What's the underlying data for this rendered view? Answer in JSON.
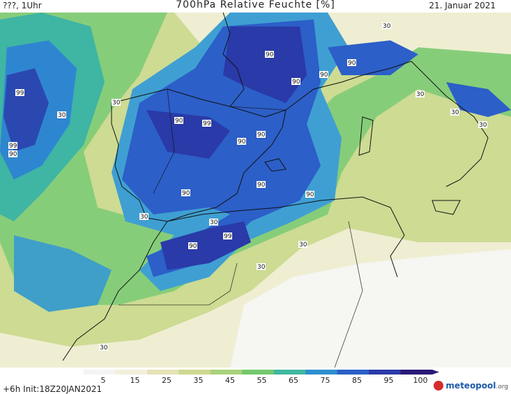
{
  "header": {
    "left": "???, 1Uhr",
    "title": "700hPa Relative Feuchte [%]",
    "date": "21. Januar 2021"
  },
  "footer": {
    "init": "+6h  Init:18Z20JAN2021",
    "logo": "meteopool",
    "logo_suffix": ".org"
  },
  "legend": {
    "ticks": [
      "5",
      "15",
      "25",
      "35",
      "45",
      "55",
      "65",
      "75",
      "85",
      "95",
      "100"
    ],
    "colors": [
      "#f4f4f4",
      "#f2f0dc",
      "#e6e2b6",
      "#cfd88f",
      "#a9d27a",
      "#74c86e",
      "#3fb7a0",
      "#2f8fd0",
      "#2c5fc8",
      "#2a3aa8",
      "#2b1a78"
    ]
  },
  "contour_labels": [
    "90",
    "90",
    "99",
    "99",
    "90",
    "90",
    "90",
    "90",
    "99",
    "90",
    "90",
    "90",
    "90",
    "90",
    "99",
    "90",
    "30",
    "30",
    "30",
    "30",
    "30",
    "30",
    "30",
    "30",
    "30",
    "30",
    "30"
  ]
}
